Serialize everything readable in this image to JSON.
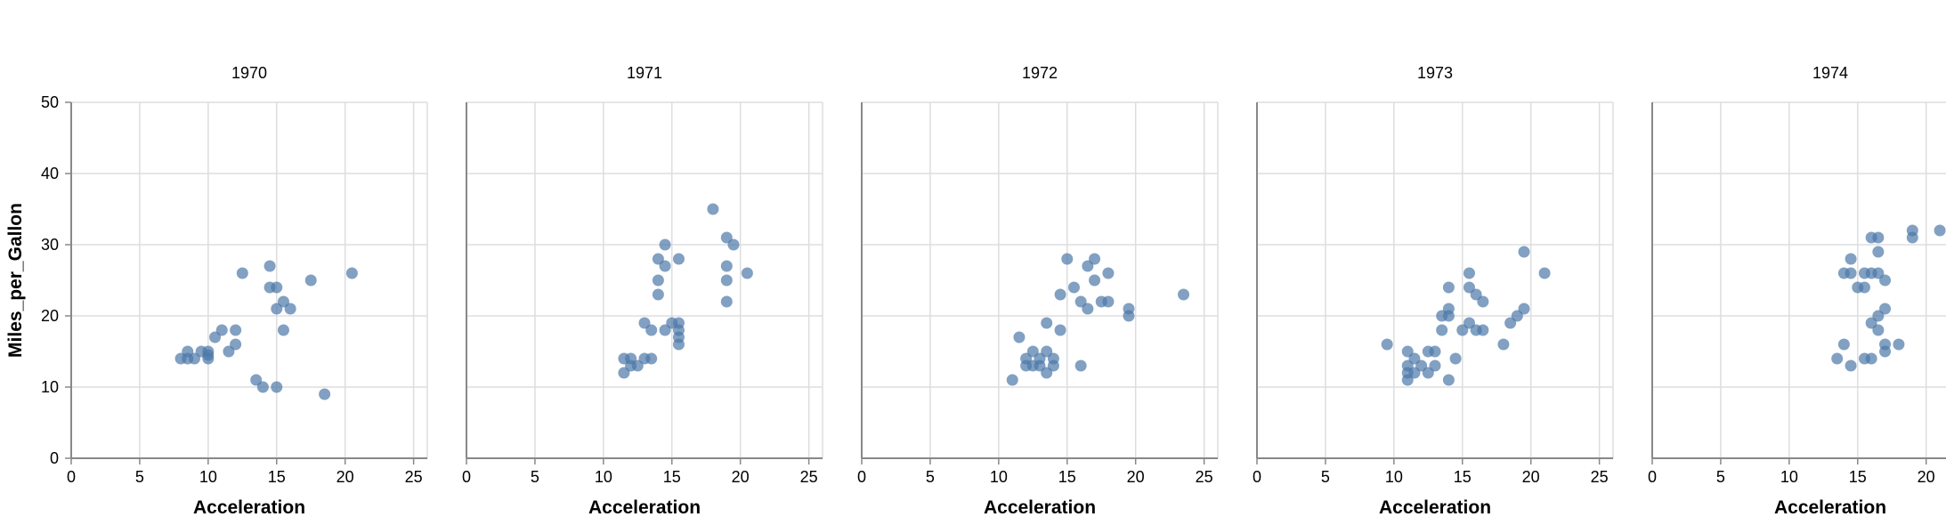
{
  "chart_data": {
    "type": "scatter",
    "facet_field": "Year",
    "xlabel": "Acceleration",
    "ylabel": "Miles_per_Gallon",
    "xlim": [
      0,
      26
    ],
    "ylim": [
      0,
      50
    ],
    "x_ticks": [
      0,
      5,
      10,
      15,
      20,
      25
    ],
    "y_ticks": [
      0,
      10,
      20,
      30,
      40,
      50
    ],
    "grid": true,
    "point_color": "#4c78a8",
    "facets": [
      {
        "title": "1970",
        "points": [
          [
            8,
            14
          ],
          [
            8.5,
            14
          ],
          [
            8.5,
            15
          ],
          [
            9,
            14
          ],
          [
            9.5,
            15
          ],
          [
            10,
            14
          ],
          [
            10,
            15
          ],
          [
            10,
            14.5
          ],
          [
            10.5,
            17
          ],
          [
            11,
            18
          ],
          [
            11.5,
            15
          ],
          [
            12,
            16
          ],
          [
            12,
            18
          ],
          [
            12.5,
            26
          ],
          [
            13.5,
            11
          ],
          [
            14,
            10
          ],
          [
            14.5,
            27
          ],
          [
            14.5,
            24
          ],
          [
            15,
            24
          ],
          [
            15,
            21
          ],
          [
            15,
            10
          ],
          [
            15.5,
            22
          ],
          [
            15.5,
            18
          ],
          [
            16,
            21
          ],
          [
            17.5,
            25
          ],
          [
            18.5,
            9
          ],
          [
            20.5,
            26
          ]
        ]
      },
      {
        "title": "1971",
        "points": [
          [
            11.5,
            12
          ],
          [
            11.5,
            14
          ],
          [
            12,
            13
          ],
          [
            12,
            14
          ],
          [
            12.5,
            13
          ],
          [
            13,
            14
          ],
          [
            13,
            19
          ],
          [
            13.5,
            14
          ],
          [
            13.5,
            18
          ],
          [
            14,
            23
          ],
          [
            14,
            25
          ],
          [
            14,
            28
          ],
          [
            14.5,
            18
          ],
          [
            14.5,
            27
          ],
          [
            14.5,
            30
          ],
          [
            15,
            19
          ],
          [
            15.5,
            16
          ],
          [
            15.5,
            17
          ],
          [
            15.5,
            18
          ],
          [
            15.5,
            19
          ],
          [
            15.5,
            28
          ],
          [
            18,
            35
          ],
          [
            19,
            31
          ],
          [
            19,
            27
          ],
          [
            19,
            25
          ],
          [
            19,
            22
          ],
          [
            19.5,
            30
          ],
          [
            20.5,
            26
          ]
        ]
      },
      {
        "title": "1972",
        "points": [
          [
            11,
            11
          ],
          [
            11.5,
            17
          ],
          [
            12,
            13
          ],
          [
            12,
            14
          ],
          [
            12.5,
            13
          ],
          [
            12.5,
            15
          ],
          [
            13,
            14
          ],
          [
            13,
            13
          ],
          [
            13.5,
            12
          ],
          [
            13.5,
            19
          ],
          [
            13.5,
            15
          ],
          [
            14,
            13
          ],
          [
            14,
            14
          ],
          [
            14.5,
            18
          ],
          [
            14.5,
            23
          ],
          [
            15,
            28
          ],
          [
            15.5,
            24
          ],
          [
            16,
            22
          ],
          [
            16,
            13
          ],
          [
            16.5,
            21
          ],
          [
            16.5,
            27
          ],
          [
            17,
            28
          ],
          [
            17,
            25
          ],
          [
            17.5,
            22
          ],
          [
            18,
            26
          ],
          [
            18,
            22
          ],
          [
            19.5,
            21
          ],
          [
            19.5,
            20
          ],
          [
            23.5,
            23
          ]
        ]
      },
      {
        "title": "1973",
        "points": [
          [
            9.5,
            16
          ],
          [
            11,
            15
          ],
          [
            11,
            13
          ],
          [
            11,
            12
          ],
          [
            11,
            11
          ],
          [
            11.5,
            14
          ],
          [
            11.5,
            12
          ],
          [
            12,
            13
          ],
          [
            12.5,
            12
          ],
          [
            12.5,
            15
          ],
          [
            13,
            13
          ],
          [
            13,
            15
          ],
          [
            13.5,
            18
          ],
          [
            13.5,
            20
          ],
          [
            14,
            21
          ],
          [
            14,
            20
          ],
          [
            14,
            24
          ],
          [
            14,
            11
          ],
          [
            14.5,
            14
          ],
          [
            15,
            18
          ],
          [
            15.5,
            26
          ],
          [
            15.5,
            24
          ],
          [
            15.5,
            19
          ],
          [
            16,
            18
          ],
          [
            16,
            23
          ],
          [
            16.5,
            22
          ],
          [
            16.5,
            18
          ],
          [
            18,
            16
          ],
          [
            18.5,
            19
          ],
          [
            19,
            20
          ],
          [
            19.5,
            21
          ],
          [
            19.5,
            29
          ],
          [
            21,
            26
          ]
        ]
      },
      {
        "title": "1974",
        "points": [
          [
            13.5,
            14
          ],
          [
            14,
            16
          ],
          [
            14,
            26
          ],
          [
            14.5,
            13
          ],
          [
            14.5,
            26
          ],
          [
            14.5,
            28
          ],
          [
            15,
            24
          ],
          [
            15.5,
            26
          ],
          [
            15.5,
            24
          ],
          [
            15.5,
            14
          ],
          [
            16,
            31
          ],
          [
            16,
            26
          ],
          [
            16,
            19
          ],
          [
            16,
            14
          ],
          [
            16.5,
            31
          ],
          [
            16.5,
            29
          ],
          [
            16.5,
            26
          ],
          [
            16.5,
            18
          ],
          [
            16.5,
            20
          ],
          [
            17,
            25
          ],
          [
            17,
            21
          ],
          [
            17,
            16
          ],
          [
            17,
            15
          ],
          [
            18,
            16
          ],
          [
            19,
            32
          ],
          [
            19,
            31
          ],
          [
            21,
            32
          ]
        ]
      }
    ]
  }
}
